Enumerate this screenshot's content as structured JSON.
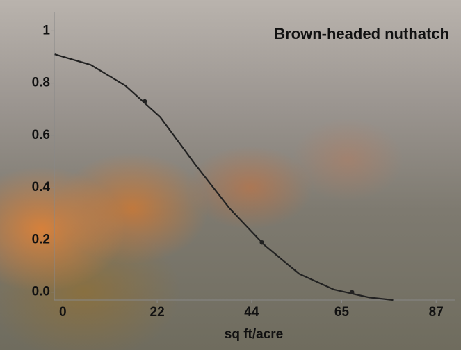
{
  "chart_data": {
    "type": "scatter",
    "title": "Brown-headed nuthatch",
    "x_label": "sq ft/acre",
    "xlim": [
      -2,
      91.5
    ],
    "ylim": [
      -0.03,
      1.07
    ],
    "xticks": [
      0,
      22,
      44,
      65,
      87
    ],
    "yticks": [
      {
        "value": 0,
        "label": "0.0"
      },
      0.2,
      0.4,
      0.6,
      0.8,
      1
    ],
    "series": [
      {
        "mode": "markers",
        "color": "#222222",
        "x": [
          19.1,
          46.4,
          67.4
        ],
        "values": [
          0.73,
          0.19,
          0
        ]
      },
      {
        "mode": "line",
        "color": "#222222",
        "x": [
          -1.9,
          6.5,
          14.6,
          22.7,
          30.8,
          38.9,
          47.0,
          55.1,
          63.2,
          71.3,
          77.0
        ],
        "values": [
          0.91,
          0.87,
          0.79,
          0.67,
          0.49,
          0.32,
          0.18,
          0.07,
          0.01,
          -0.02,
          -0.03
        ]
      }
    ]
  }
}
